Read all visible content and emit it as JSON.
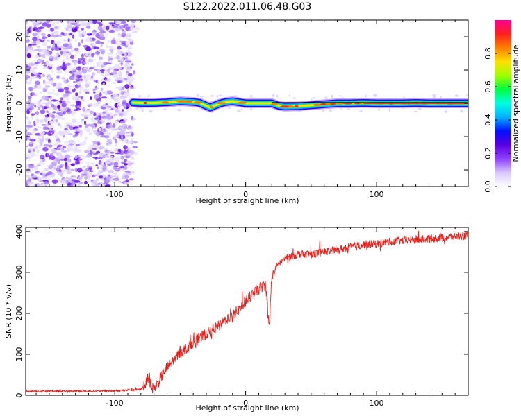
{
  "chart_data": [
    {
      "type": "heatmap",
      "title": "S122.2022.011.06.48.G03",
      "xlabel": "Height of straight line (km)",
      "ylabel": "Frequency (Hz)",
      "xlim": [
        -168,
        170
      ],
      "ylim": [
        -25,
        25
      ],
      "x_ticks": [
        -100,
        0,
        100
      ],
      "y_ticks": [
        -20,
        -10,
        0,
        10,
        20
      ],
      "colorbar": {
        "label": "Normalized spectral amplitude",
        "range": [
          0,
          1
        ],
        "ticks": [
          0.0,
          0.2,
          0.4,
          0.6,
          0.8
        ],
        "colormap": [
          "#ffffff",
          "#d8c8ff",
          "#9040ff",
          "#5a00e0",
          "#0010ff",
          "#00b0ff",
          "#00ffe0",
          "#00ff40",
          "#a0ff00",
          "#ffe000",
          "#ff8000",
          "#ff2020",
          "#ff0090"
        ]
      },
      "noise_region_x": [
        -168,
        -86
      ],
      "signal_trace": {
        "x": [
          -86,
          -80,
          -70,
          -60,
          -50,
          -40,
          -35,
          -30,
          -27,
          -25,
          -20,
          -15,
          -10,
          -5,
          0,
          10,
          20,
          25,
          30,
          40,
          50,
          60,
          70,
          80,
          90,
          100,
          110,
          120,
          130,
          140,
          150,
          160,
          170
        ],
        "y": [
          0.2,
          0.1,
          0.1,
          0.3,
          0.6,
          0.4,
          0.1,
          -0.8,
          -1.3,
          -0.9,
          -0.1,
          0.4,
          0.6,
          0.3,
          0.0,
          0.0,
          0.0,
          -0.7,
          -1.0,
          -0.9,
          -0.6,
          -0.3,
          0.0,
          0.0,
          0.1,
          0.0,
          0.0,
          0.0,
          0.1,
          0.0,
          0.0,
          0.0,
          0.0
        ]
      }
    },
    {
      "type": "line",
      "xlabel": "Height of straight line (km)",
      "ylabel": "SNR (10 * v/v)",
      "xlim": [
        -168,
        170
      ],
      "ylim": [
        0,
        410
      ],
      "x_ticks": [
        -100,
        0,
        100
      ],
      "y_ticks": [
        0,
        100,
        200,
        300,
        400
      ],
      "series": [
        {
          "color": "#e8231f",
          "x": [
            -168,
            -140,
            -110,
            -90,
            -80,
            -76,
            -74,
            -72,
            -70,
            -66,
            -62,
            -55,
            -50,
            -45,
            -40,
            -35,
            -30,
            -25,
            -20,
            -15,
            -10,
            -5,
            0,
            5,
            10,
            15,
            16,
            17,
            18,
            19,
            20,
            25,
            30,
            40,
            50,
            60,
            70,
            80,
            90,
            100,
            110,
            120,
            130,
            140,
            150,
            160,
            170
          ],
          "y": [
            10,
            10,
            10,
            12,
            14,
            30,
            50,
            20,
            15,
            35,
            60,
            85,
            105,
            115,
            130,
            140,
            150,
            160,
            170,
            185,
            195,
            210,
            230,
            245,
            260,
            270,
            250,
            200,
            160,
            230,
            290,
            320,
            335,
            345,
            345,
            350,
            355,
            362,
            368,
            370,
            375,
            378,
            380,
            382,
            385,
            388,
            390
          ]
        }
      ]
    }
  ]
}
